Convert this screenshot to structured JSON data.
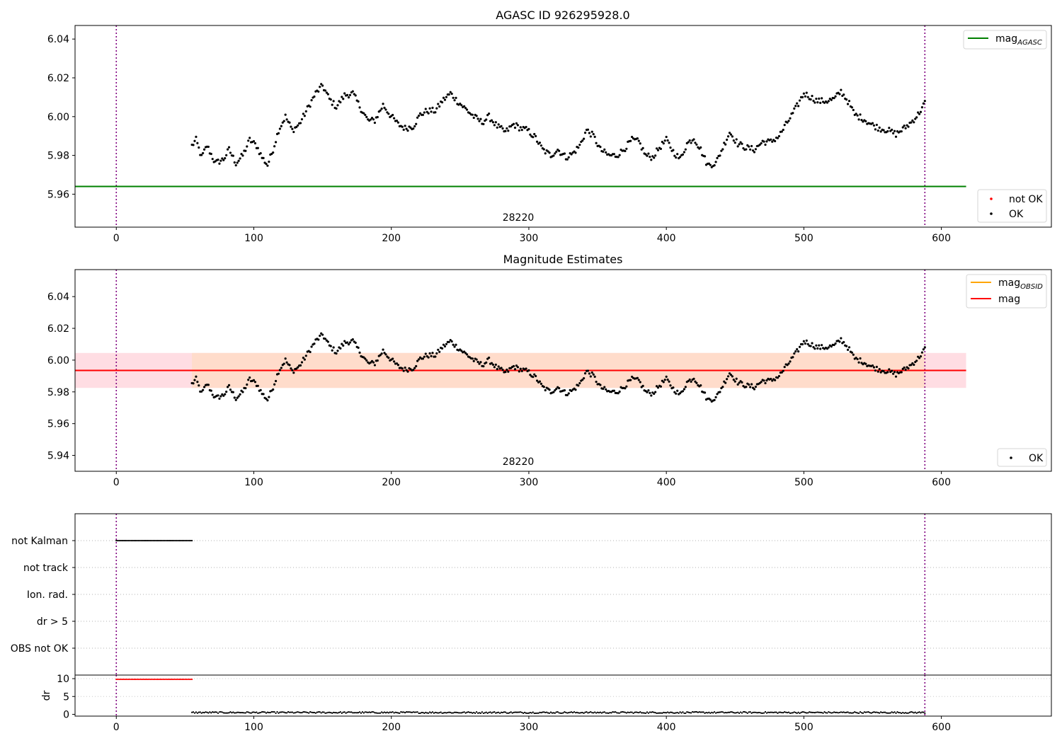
{
  "chart_data": [
    {
      "type": "scatter",
      "title": "AGASC ID 926295928.0",
      "xlim": [
        -30,
        680
      ],
      "ylim": [
        5.943,
        6.047
      ],
      "x_ticks": [
        "0",
        "100",
        "200",
        "300",
        "400",
        "500",
        "600"
      ],
      "y_ticks": [
        "5.96",
        "5.98",
        "6.00",
        "6.02",
        "6.04"
      ],
      "vlines": [
        0,
        588
      ],
      "annotation": "28220",
      "hline": {
        "name": "mag_AGASC",
        "label_main": "mag",
        "label_sub": "AGASC",
        "y": 5.964,
        "x_range": [
          -30,
          618
        ],
        "color": "#008000"
      },
      "legend_lines": [
        {
          "label_main": "mag",
          "label_sub": "AGASC",
          "color": "#008000"
        }
      ],
      "legend_points": [
        {
          "label": "not OK",
          "color": "#ff0000"
        },
        {
          "label": "OK",
          "color": "#000000"
        }
      ],
      "series": [
        {
          "name": "OK",
          "color": "#000000",
          "x_range": [
            55,
            588
          ],
          "keypoints": [
            [
              55,
              5.985
            ],
            [
              58,
              5.988
            ],
            [
              62,
              5.979
            ],
            [
              66,
              5.985
            ],
            [
              72,
              5.976
            ],
            [
              78,
              5.978
            ],
            [
              82,
              5.983
            ],
            [
              87,
              5.976
            ],
            [
              92,
              5.98
            ],
            [
              97,
              5.988
            ],
            [
              102,
              5.985
            ],
            [
              106,
              5.979
            ],
            [
              110,
              5.975
            ],
            [
              114,
              5.983
            ],
            [
              118,
              5.993
            ],
            [
              123,
              6.0
            ],
            [
              128,
              5.993
            ],
            [
              133,
              5.996
            ],
            [
              139,
              6.004
            ],
            [
              145,
              6.012
            ],
            [
              150,
              6.016
            ],
            [
              155,
              6.009
            ],
            [
              160,
              6.005
            ],
            [
              166,
              6.011
            ],
            [
              172,
              6.012
            ],
            [
              178,
              6.004
            ],
            [
              183,
              5.998
            ],
            [
              188,
              5.998
            ],
            [
              194,
              6.006
            ],
            [
              199,
              6.001
            ],
            [
              205,
              5.996
            ],
            [
              210,
              5.994
            ],
            [
              216,
              5.995
            ],
            [
              221,
              6.001
            ],
            [
              226,
              6.003
            ],
            [
              232,
              6.003
            ],
            [
              237,
              6.008
            ],
            [
              243,
              6.012
            ],
            [
              248,
              6.008
            ],
            [
              254,
              6.004
            ],
            [
              260,
              6.0
            ],
            [
              266,
              5.997
            ],
            [
              271,
              6.0
            ],
            [
              277,
              5.995
            ],
            [
              283,
              5.992
            ],
            [
              289,
              5.996
            ],
            [
              294,
              5.994
            ],
            [
              299,
              5.993
            ],
            [
              305,
              5.989
            ],
            [
              310,
              5.983
            ],
            [
              316,
              5.98
            ],
            [
              321,
              5.983
            ],
            [
              327,
              5.979
            ],
            [
              332,
              5.981
            ],
            [
              337,
              5.985
            ],
            [
              342,
              5.993
            ],
            [
              347,
              5.99
            ],
            [
              352,
              5.983
            ],
            [
              358,
              5.98
            ],
            [
              364,
              5.98
            ],
            [
              369,
              5.983
            ],
            [
              375,
              5.988
            ],
            [
              380,
              5.987
            ],
            [
              385,
              5.98
            ],
            [
              390,
              5.979
            ],
            [
              395,
              5.984
            ],
            [
              400,
              5.988
            ],
            [
              405,
              5.982
            ],
            [
              410,
              5.978
            ],
            [
              415,
              5.986
            ],
            [
              420,
              5.989
            ],
            [
              425,
              5.983
            ],
            [
              430,
              5.975
            ],
            [
              436,
              5.976
            ],
            [
              441,
              5.984
            ],
            [
              446,
              5.992
            ],
            [
              452,
              5.986
            ],
            [
              458,
              5.984
            ],
            [
              464,
              5.983
            ],
            [
              470,
              5.987
            ],
            [
              476,
              5.987
            ],
            [
              482,
              5.99
            ],
            [
              488,
              5.997
            ],
            [
              494,
              6.004
            ],
            [
              500,
              6.012
            ],
            [
              505,
              6.01
            ],
            [
              510,
              6.008
            ],
            [
              516,
              6.008
            ],
            [
              522,
              6.009
            ],
            [
              527,
              6.013
            ],
            [
              532,
              6.008
            ],
            [
              537,
              6.001
            ],
            [
              543,
              5.999
            ],
            [
              549,
              5.996
            ],
            [
              555,
              5.994
            ],
            [
              561,
              5.993
            ],
            [
              567,
              5.991
            ],
            [
              573,
              5.994
            ],
            [
              578,
              5.997
            ],
            [
              583,
              6.001
            ],
            [
              588,
              6.007
            ]
          ]
        }
      ]
    },
    {
      "type": "scatter",
      "title": "Magnitude Estimates",
      "xlim": [
        -30,
        680
      ],
      "ylim": [
        5.93,
        6.057
      ],
      "x_ticks": [
        "0",
        "100",
        "200",
        "300",
        "400",
        "500",
        "600"
      ],
      "y_ticks": [
        "5.94",
        "5.96",
        "5.98",
        "6.00",
        "6.02",
        "6.04"
      ],
      "vlines": [
        0,
        588
      ],
      "annotation": "28220",
      "hline": {
        "name": "mag",
        "y": 5.9935,
        "x_range": [
          -30,
          618
        ],
        "color": "#ff0000"
      },
      "band": {
        "y_low": 5.9825,
        "y_high": 6.0045,
        "x_range": [
          -30,
          618
        ],
        "color_outer": "#ffdde3",
        "color_inner": "#ffdccb"
      },
      "legend_lines": [
        {
          "label_main": "mag",
          "label_sub": "OBSID",
          "color": "#ffa500"
        },
        {
          "label_main": "mag",
          "label_sub": "",
          "color": "#ff0000"
        }
      ],
      "legend_points": [
        {
          "label": "OK",
          "color": "#000000"
        }
      ]
    },
    {
      "type": "scatter",
      "xlim": [
        -30,
        680
      ],
      "categories": [
        "not Kalman",
        "not track",
        "Ion. rad.",
        "dr > 5",
        "OBS not OK"
      ],
      "flag_segments": [
        {
          "category": "not Kalman",
          "x_range": [
            0,
            55
          ],
          "color": "#000000"
        }
      ],
      "vlines": [
        0,
        588
      ]
    },
    {
      "type": "scatter",
      "ylabel": "dr",
      "xlim": [
        -30,
        680
      ],
      "ylim": [
        -0.5,
        11
      ],
      "x_ticks": [
        "0",
        "100",
        "200",
        "300",
        "400",
        "500",
        "600"
      ],
      "y_ticks": [
        "0",
        "5",
        "10"
      ],
      "vlines": [
        0,
        588
      ],
      "series": [
        {
          "name": "dr not OK",
          "color": "#ff0000",
          "x_range": [
            0,
            55
          ],
          "y": 9.8
        },
        {
          "name": "dr OK",
          "color": "#000000",
          "x_range": [
            55,
            588
          ],
          "y": 0.3
        }
      ]
    }
  ]
}
